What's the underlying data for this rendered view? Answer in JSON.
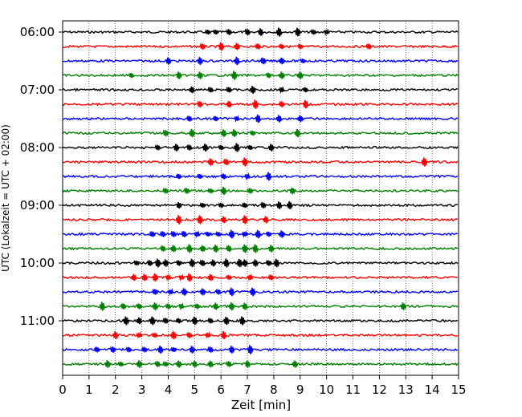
{
  "chart_data": {
    "type": "line",
    "title": "",
    "xlabel": "Zeit  [min]",
    "ylabel": "UTC (Lokalzeit = UTC + 02:00)",
    "xlim": [
      0,
      15
    ],
    "xticks": [
      0,
      1,
      2,
      3,
      4,
      5,
      6,
      7,
      8,
      9,
      10,
      11,
      12,
      13,
      14,
      15
    ],
    "xtick_labels": [
      "0",
      "1",
      "2",
      "3",
      "4",
      "5",
      "6",
      "7",
      "8",
      "9",
      "10",
      "11",
      "12",
      "13",
      "14",
      "15"
    ],
    "ytick_labels": [
      "06:00",
      "07:00",
      "08:00",
      "09:00",
      "10:00",
      "11:00"
    ],
    "ytick_rows": [
      0,
      4,
      8,
      12,
      16,
      20
    ],
    "grid": "vertical-dotted",
    "color_cycle": [
      "#000000",
      "#ff0000",
      "#0000ff",
      "#008000"
    ],
    "row_minutes": 15,
    "start_time": "06:00",
    "rows": [
      {
        "time": "06:00",
        "color": "#000000",
        "events": [
          5.5,
          5.8,
          6.3,
          7.0,
          7.5,
          8.2,
          8.9,
          9.5,
          10.0
        ]
      },
      {
        "time": "06:15",
        "color": "#ff0000",
        "events": [
          5.3,
          6.0,
          6.6,
          7.4,
          8.3,
          9.0,
          11.6
        ]
      },
      {
        "time": "06:30",
        "color": "#0000ff",
        "events": [
          4.0,
          5.2,
          6.6,
          7.6,
          8.3,
          9.1
        ]
      },
      {
        "time": "06:45",
        "color": "#008000",
        "events": [
          2.6,
          4.4,
          5.2,
          6.5,
          7.8,
          8.3,
          9.0
        ]
      },
      {
        "time": "07:00",
        "color": "#000000",
        "events": [
          4.9,
          5.6,
          6.3,
          7.2,
          8.3,
          9.2
        ]
      },
      {
        "time": "07:15",
        "color": "#ff0000",
        "events": [
          5.2,
          6.3,
          7.3,
          8.3,
          9.2
        ]
      },
      {
        "time": "07:30",
        "color": "#0000ff",
        "events": [
          4.8,
          5.8,
          6.6,
          7.4,
          8.2,
          9.0
        ]
      },
      {
        "time": "07:45",
        "color": "#008000",
        "events": [
          3.9,
          4.9,
          6.1,
          6.5,
          7.2,
          8.9
        ]
      },
      {
        "time": "08:00",
        "color": "#000000",
        "events": [
          3.6,
          4.3,
          4.8,
          5.4,
          6.0,
          6.6,
          7.1,
          7.9
        ]
      },
      {
        "time": "08:15",
        "color": "#ff0000",
        "events": [
          5.6,
          6.2,
          6.9,
          13.7
        ]
      },
      {
        "time": "08:30",
        "color": "#0000ff",
        "events": [
          4.4,
          5.2,
          6.1,
          7.0,
          7.8
        ]
      },
      {
        "time": "08:45",
        "color": "#008000",
        "events": [
          3.9,
          4.7,
          5.6,
          6.1,
          7.1,
          8.7
        ]
      },
      {
        "time": "09:00",
        "color": "#000000",
        "events": [
          4.4,
          5.3,
          6.0,
          6.9,
          7.6,
          8.2,
          8.6
        ]
      },
      {
        "time": "09:15",
        "color": "#ff0000",
        "events": [
          4.4,
          5.2,
          6.1,
          6.9,
          7.7
        ]
      },
      {
        "time": "09:30",
        "color": "#0000ff",
        "events": [
          3.4,
          3.8,
          4.2,
          4.6,
          5.1,
          5.5,
          5.9,
          6.4,
          6.9,
          7.4,
          7.8,
          8.3
        ]
      },
      {
        "time": "09:45",
        "color": "#008000",
        "events": [
          3.8,
          4.2,
          4.8,
          5.3,
          5.8,
          6.3,
          6.9,
          7.3,
          7.9
        ]
      },
      {
        "time": "10:00",
        "color": "#000000",
        "events": [
          2.8,
          3.3,
          3.6,
          3.9,
          4.4,
          4.9,
          5.3,
          5.7,
          6.2,
          6.7,
          6.9,
          7.3,
          7.8,
          8.1
        ]
      },
      {
        "time": "10:15",
        "color": "#ff0000",
        "events": [
          2.7,
          3.1,
          3.5,
          4.0,
          4.5,
          4.8,
          5.6,
          6.3,
          7.1,
          7.9
        ]
      },
      {
        "time": "10:30",
        "color": "#0000ff",
        "events": [
          3.5,
          4.1,
          4.6,
          5.3,
          5.9,
          6.4,
          7.2
        ]
      },
      {
        "time": "10:45",
        "color": "#008000",
        "events": [
          1.5,
          2.3,
          2.9,
          3.5,
          4.0,
          4.5,
          5.1,
          5.8,
          6.4,
          6.9,
          12.9
        ]
      },
      {
        "time": "11:00",
        "color": "#000000",
        "events": [
          2.4,
          2.9,
          3.4,
          3.9,
          4.4,
          5.0,
          5.6,
          6.2,
          6.8
        ]
      },
      {
        "time": "11:15",
        "color": "#ff0000",
        "events": [
          2.0,
          2.9,
          3.5,
          4.2,
          4.8,
          5.5,
          6.1
        ]
      },
      {
        "time": "11:30",
        "color": "#0000ff",
        "events": [
          1.3,
          1.9,
          2.5,
          3.1,
          3.7,
          4.2,
          4.9,
          5.6,
          6.4,
          7.1
        ]
      },
      {
        "time": "11:45",
        "color": "#008000",
        "events": [
          1.7,
          2.2,
          2.9,
          3.6,
          3.9,
          4.4,
          5.0,
          5.6,
          6.3,
          7.0,
          8.8
        ]
      }
    ]
  }
}
